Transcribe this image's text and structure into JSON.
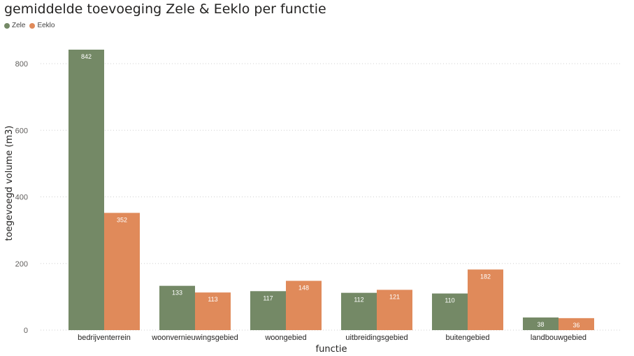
{
  "chart_data": {
    "type": "bar",
    "title": "gemiddelde toevoeging Zele & Eeklo per functie",
    "xlabel": "functie",
    "ylabel": "toegevoegd volume (m3)",
    "categories": [
      "bedrijventerrein",
      "woonvernieuwingsgebied",
      "woongebied",
      "uitbreidingsgebied",
      "buitengebied",
      "landbouwgebied"
    ],
    "series": [
      {
        "name": "Zele",
        "color": "#748966",
        "values": [
          842,
          133,
          117,
          112,
          110,
          38
        ]
      },
      {
        "name": "Eeklo",
        "color": "#e08a5a",
        "values": [
          352,
          113,
          148,
          121,
          182,
          36
        ]
      }
    ],
    "yticks": [
      0,
      200,
      400,
      600,
      800
    ],
    "ylim": [
      0,
      880
    ],
    "grid": true,
    "legend": "top-left"
  }
}
